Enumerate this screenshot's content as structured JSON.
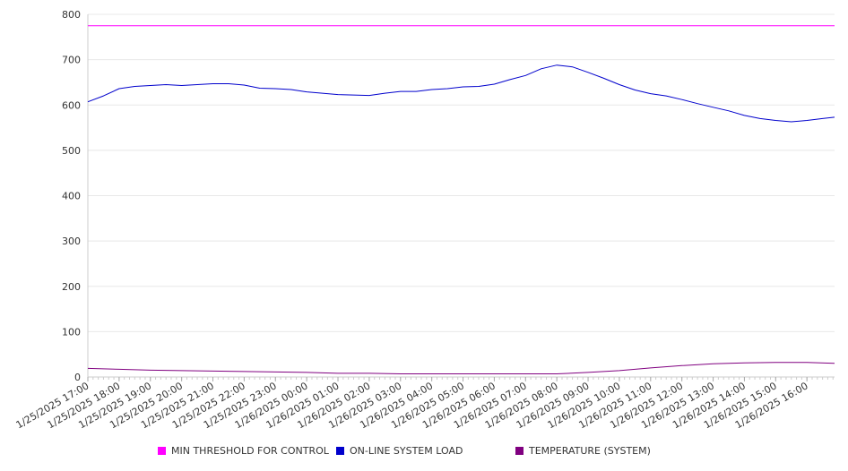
{
  "chart_data": {
    "type": "line",
    "title": "",
    "xlabel": "",
    "ylabel": "",
    "ylim": [
      0,
      800
    ],
    "yticks": [
      0,
      100,
      200,
      300,
      400,
      500,
      600,
      700,
      800
    ],
    "xlim": [
      "1/25/2025 17:00",
      "1/26/2025 16:53"
    ],
    "xticks": [
      "1/25/2025 17:00",
      "1/25/2025 18:00",
      "1/25/2025 19:00",
      "1/25/2025 20:00",
      "1/25/2025 21:00",
      "1/25/2025 22:00",
      "1/25/2025 23:00",
      "1/26/2025 00:00",
      "1/26/2025 01:00",
      "1/26/2025 02:00",
      "1/26/2025 03:00",
      "1/26/2025 04:00",
      "1/26/2025 05:00",
      "1/26/2025 06:00",
      "1/26/2025 07:00",
      "1/26/2025 08:00",
      "1/26/2025 09:00",
      "1/26/2025 10:00",
      "1/26/2025 11:00",
      "1/26/2025 12:00",
      "1/26/2025 13:00",
      "1/26/2025 14:00",
      "1/26/2025 15:00",
      "1/26/2025 16:00"
    ],
    "grid": true,
    "legend_position": "bottom",
    "series": [
      {
        "name": "MIN THRESHOLD FOR CONTROL",
        "color": "#ff00ff",
        "x": [
          "1/25/2025 17:00",
          "1/26/2025 16:53"
        ],
        "values": [
          775,
          775
        ]
      },
      {
        "name": "ON-LINE SYSTEM LOAD",
        "color": "#0000cc",
        "x": [
          "1/25/2025 17:00",
          "1/25/2025 17:30",
          "1/25/2025 18:00",
          "1/25/2025 18:30",
          "1/25/2025 19:00",
          "1/25/2025 19:30",
          "1/25/2025 20:00",
          "1/25/2025 20:30",
          "1/25/2025 21:00",
          "1/25/2025 21:30",
          "1/25/2025 22:00",
          "1/25/2025 22:30",
          "1/25/2025 23:00",
          "1/25/2025 23:30",
          "1/26/2025 00:00",
          "1/26/2025 00:30",
          "1/26/2025 01:00",
          "1/26/2025 01:30",
          "1/26/2025 02:00",
          "1/26/2025 02:30",
          "1/26/2025 03:00",
          "1/26/2025 03:30",
          "1/26/2025 04:00",
          "1/26/2025 04:30",
          "1/26/2025 05:00",
          "1/26/2025 05:30",
          "1/26/2025 06:00",
          "1/26/2025 06:30",
          "1/26/2025 07:00",
          "1/26/2025 07:30",
          "1/26/2025 08:00",
          "1/26/2025 08:30",
          "1/26/2025 09:00",
          "1/26/2025 09:30",
          "1/26/2025 10:00",
          "1/26/2025 10:30",
          "1/26/2025 11:00",
          "1/26/2025 11:30",
          "1/26/2025 12:00",
          "1/26/2025 12:30",
          "1/26/2025 13:00",
          "1/26/2025 13:30",
          "1/26/2025 14:00",
          "1/26/2025 14:30",
          "1/26/2025 15:00",
          "1/26/2025 15:30",
          "1/26/2025 16:00",
          "1/26/2025 16:30",
          "1/26/2025 16:53"
        ],
        "values": [
          607,
          620,
          636,
          641,
          643,
          645,
          643,
          645,
          647,
          647,
          644,
          637,
          636,
          634,
          629,
          626,
          623,
          622,
          621,
          626,
          630,
          630,
          634,
          636,
          640,
          641,
          646,
          656,
          665,
          680,
          688,
          684,
          672,
          659,
          645,
          633,
          625,
          620,
          612,
          603,
          595,
          587,
          577,
          570,
          566,
          563,
          566,
          570,
          573
        ]
      },
      {
        "name": "TEMPERATURE (SYSTEM)",
        "color": "#800080",
        "x": [
          "1/25/2025 17:00",
          "1/25/2025 18:00",
          "1/25/2025 19:00",
          "1/25/2025 20:00",
          "1/25/2025 21:00",
          "1/25/2025 22:00",
          "1/25/2025 23:00",
          "1/26/2025 00:00",
          "1/26/2025 01:00",
          "1/26/2025 02:00",
          "1/26/2025 03:00",
          "1/26/2025 04:00",
          "1/26/2025 05:00",
          "1/26/2025 06:00",
          "1/26/2025 07:00",
          "1/26/2025 08:00",
          "1/26/2025 09:00",
          "1/26/2025 10:00",
          "1/26/2025 11:00",
          "1/26/2025 12:00",
          "1/26/2025 13:00",
          "1/26/2025 14:00",
          "1/26/2025 15:00",
          "1/26/2025 16:00",
          "1/26/2025 16:53"
        ],
        "values": [
          19,
          17,
          15,
          14,
          13,
          12,
          11,
          10,
          8,
          8,
          7,
          7,
          7,
          7,
          7,
          7,
          10,
          14,
          20,
          25,
          29,
          31,
          32,
          32,
          30
        ]
      }
    ]
  }
}
